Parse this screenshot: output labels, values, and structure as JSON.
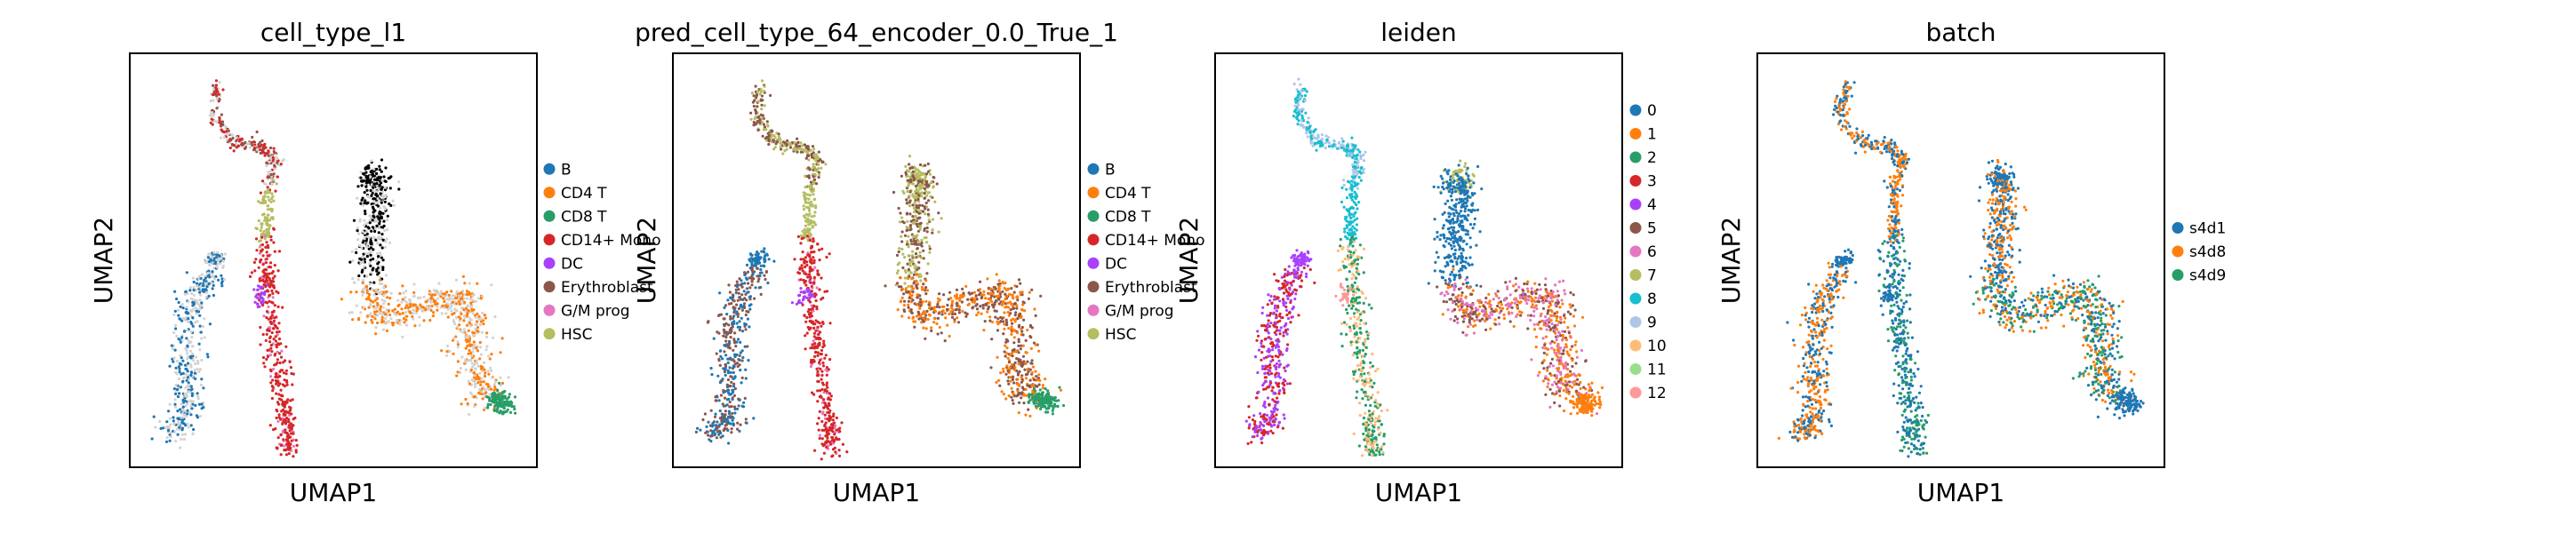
{
  "chart_data": [
    {
      "type": "scatter",
      "title": "cell_type_l1",
      "xlabel": "UMAP1",
      "ylabel": "UMAP2",
      "grid": false,
      "legend": "right",
      "series": [
        {
          "name": "B",
          "color": "#1f77b4",
          "region": "left-arm"
        },
        {
          "name": "CD4 T",
          "color": "#ff7f0e",
          "region": "right-arm"
        },
        {
          "name": "CD8 T",
          "color": "#279e68",
          "region": "right-tip"
        },
        {
          "name": "CD14+ Mono",
          "color": "#d62728",
          "region": "mono"
        },
        {
          "name": "DC",
          "color": "#aa40fc",
          "region": "dc"
        },
        {
          "name": "Erythroblast",
          "color": "#8c564b",
          "region": "top-arc"
        },
        {
          "name": "G/M prog",
          "color": "#e377c2",
          "region": "mid-stem"
        },
        {
          "name": "HSC",
          "color": "#b5bd61",
          "region": "upper-stem"
        },
        {
          "name": "",
          "color": "#d3d3d3",
          "region": "unlabeled"
        }
      ]
    },
    {
      "type": "scatter",
      "title": "pred_cell_type_64_encoder_0.0_True_1",
      "xlabel": "UMAP1",
      "ylabel": "UMAP2",
      "grid": false,
      "legend": "right",
      "series": [
        {
          "name": "B",
          "color": "#1f77b4"
        },
        {
          "name": "CD4 T",
          "color": "#ff7f0e"
        },
        {
          "name": "CD8 T",
          "color": "#279e68"
        },
        {
          "name": "CD14+ Mono",
          "color": "#d62728"
        },
        {
          "name": "DC",
          "color": "#aa40fc"
        },
        {
          "name": "Erythroblast",
          "color": "#8c564b"
        },
        {
          "name": "G/M prog",
          "color": "#e377c2"
        },
        {
          "name": "HSC",
          "color": "#b5bd61"
        }
      ]
    },
    {
      "type": "scatter",
      "title": "leiden",
      "xlabel": "UMAP1",
      "ylabel": "UMAP2",
      "grid": false,
      "legend": "right",
      "series": [
        {
          "name": "0",
          "color": "#1f77b4"
        },
        {
          "name": "1",
          "color": "#ff7f0e"
        },
        {
          "name": "2",
          "color": "#279e68"
        },
        {
          "name": "3",
          "color": "#d62728"
        },
        {
          "name": "4",
          "color": "#aa40fc"
        },
        {
          "name": "5",
          "color": "#8c564b"
        },
        {
          "name": "6",
          "color": "#e377c2"
        },
        {
          "name": "7",
          "color": "#b5bd61"
        },
        {
          "name": "8",
          "color": "#17becf"
        },
        {
          "name": "9",
          "color": "#aec7e8"
        },
        {
          "name": "10",
          "color": "#ffbb78"
        },
        {
          "name": "11",
          "color": "#98df8a"
        },
        {
          "name": "12",
          "color": "#ff9896"
        }
      ]
    },
    {
      "type": "scatter",
      "title": "batch",
      "xlabel": "UMAP1",
      "ylabel": "UMAP2",
      "grid": false,
      "legend": "right",
      "series": [
        {
          "name": "s4d1",
          "color": "#1f77b4"
        },
        {
          "name": "s4d8",
          "color": "#ff7f0e"
        },
        {
          "name": "s4d9",
          "color": "#279e68"
        }
      ]
    }
  ]
}
